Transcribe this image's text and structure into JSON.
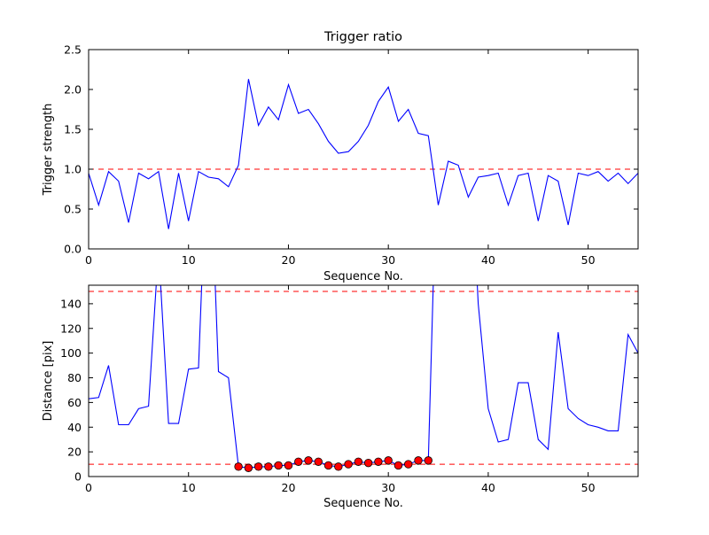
{
  "figure": {
    "background": "#ffffff"
  },
  "chart_data": [
    {
      "type": "line",
      "title": "Trigger ratio",
      "xlabel": "Sequence No.",
      "ylabel": "Trigger strength",
      "xlim": [
        0,
        55
      ],
      "ylim": [
        0,
        2.5
      ],
      "xticks": {
        "values": [
          0,
          10,
          20,
          30,
          40,
          50
        ],
        "labels": [
          "0",
          "10",
          "20",
          "30",
          "40",
          "50"
        ]
      },
      "yticks": {
        "values": [
          0,
          0.5,
          1.0,
          1.5,
          2.0,
          2.5
        ],
        "labels": [
          "0.0",
          "0.5",
          "1.0",
          "1.5",
          "2.0",
          "2.5"
        ]
      },
      "grid": false,
      "series": [
        {
          "name": "trigger-strength",
          "color": "#0000ff",
          "x_is_index": true,
          "values": [
            0.95,
            0.55,
            0.97,
            0.85,
            0.33,
            0.95,
            0.88,
            0.97,
            0.25,
            0.95,
            0.35,
            0.97,
            0.9,
            0.88,
            0.78,
            1.05,
            2.13,
            1.55,
            1.78,
            1.62,
            2.06,
            1.7,
            1.75,
            1.57,
            1.35,
            1.2,
            1.22,
            1.35,
            1.55,
            1.85,
            2.03,
            1.6,
            1.75,
            1.45,
            1.42,
            0.55,
            1.1,
            1.05,
            0.65,
            0.9,
            0.92,
            0.95,
            0.55,
            0.92,
            0.95,
            0.35,
            0.92,
            0.85,
            0.3,
            0.95,
            0.92,
            0.97,
            0.85,
            0.95,
            0.82,
            0.95
          ]
        }
      ],
      "hlines": [
        {
          "y": 1.0,
          "color": "#ff0000",
          "style": "dashed"
        }
      ]
    },
    {
      "type": "line",
      "title": "",
      "xlabel": "Sequence No.",
      "ylabel": "Distance [pix]",
      "xlim": [
        0,
        55
      ],
      "ylim": [
        0,
        155
      ],
      "xticks": {
        "values": [
          0,
          10,
          20,
          30,
          40,
          50
        ],
        "labels": [
          "0",
          "10",
          "20",
          "30",
          "40",
          "50"
        ]
      },
      "yticks": {
        "values": [
          0,
          20,
          40,
          60,
          80,
          100,
          120,
          140
        ],
        "labels": [
          "0",
          "20",
          "40",
          "60",
          "80",
          "100",
          "120",
          "140"
        ]
      },
      "grid": false,
      "series": [
        {
          "name": "distance",
          "color": "#0000ff",
          "x_is_index": true,
          "values": [
            63,
            64,
            90,
            42,
            42,
            55,
            57,
            185,
            43,
            43,
            87,
            88,
            300,
            85,
            80,
            8,
            7,
            8,
            8,
            9,
            9,
            12,
            13,
            12,
            9,
            8,
            10,
            12,
            11,
            12,
            13,
            9,
            10,
            13,
            13,
            300,
            300,
            300,
            300,
            140,
            55,
            28,
            30,
            76,
            76,
            30,
            22,
            117,
            55,
            47,
            42,
            40,
            37,
            37,
            115,
            100
          ]
        }
      ],
      "hlines": [
        {
          "y": 150,
          "color": "#ff0000",
          "style": "dashed"
        },
        {
          "y": 10,
          "color": "#ff0000",
          "style": "dashed"
        }
      ],
      "markers": {
        "name": "tracked-points",
        "shape": "circle",
        "fill": "#ff0000",
        "edge": "#000000",
        "x": [
          15,
          16,
          17,
          18,
          19,
          20,
          21,
          22,
          23,
          24,
          25,
          26,
          27,
          28,
          29,
          30,
          31,
          32,
          33,
          34
        ],
        "y": [
          8,
          7,
          8,
          8,
          9,
          9,
          12,
          13,
          12,
          9,
          8,
          10,
          12,
          11,
          12,
          13,
          9,
          10,
          13,
          13
        ]
      }
    }
  ]
}
